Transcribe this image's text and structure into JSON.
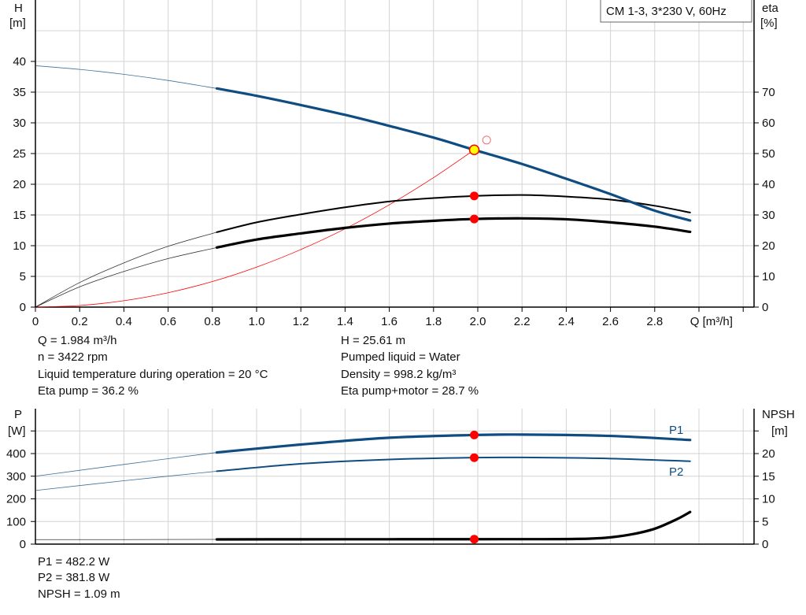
{
  "legend_box": "CM 1-3, 3*230 V, 60Hz",
  "colors": {
    "blue": "#0f4c81",
    "black": "#000000",
    "red": "#ff0000",
    "grid": "#d3d3d3",
    "yellow": "#ffff00"
  },
  "chart_data": [
    {
      "type": "line",
      "ylabel": "H",
      "yunit": "[m]",
      "y2label": "eta",
      "y2unit": "[%]",
      "xlabel": "Q [m³/h]",
      "xlim": [
        0,
        3.2
      ],
      "ylim": [
        0,
        40
      ],
      "y2lim": [
        0,
        80
      ],
      "grid": true,
      "xticks": [
        "0",
        "0.2",
        "0.4",
        "0.6",
        "0.8",
        "1.0",
        "1.2",
        "1.4",
        "1.6",
        "1.8",
        "2.0",
        "2.2",
        "2.4",
        "2.6",
        "2.8"
      ],
      "yticks": [
        "0",
        "5",
        "10",
        "15",
        "20",
        "25",
        "30",
        "35",
        "40"
      ],
      "y2ticks": [
        "0",
        "10",
        "20",
        "30",
        "40",
        "50",
        "60",
        "70"
      ],
      "series": [
        {
          "id": "H",
          "axis": "left",
          "color": "#0f4c81",
          "x": [
            0,
            0.2,
            0.4,
            0.6,
            0.82,
            1.0,
            1.2,
            1.4,
            1.6,
            1.8,
            1.984,
            2.2,
            2.4,
            2.6,
            2.8,
            2.96
          ],
          "y": [
            39.3,
            38.7,
            37.9,
            36.9,
            35.6,
            34.4,
            32.9,
            31.3,
            29.5,
            27.6,
            25.6,
            23.3,
            20.9,
            18.4,
            15.7,
            14.1
          ]
        },
        {
          "id": "eta_pump",
          "axis": "right",
          "color": "#000000",
          "x": [
            0,
            0.2,
            0.4,
            0.6,
            0.82,
            1.0,
            1.2,
            1.4,
            1.6,
            1.8,
            1.984,
            2.2,
            2.4,
            2.6,
            2.8,
            2.96
          ],
          "y": [
            0,
            8,
            14.4,
            19.8,
            24.4,
            27.6,
            30.2,
            32.5,
            34.4,
            35.5,
            36.2,
            36.5,
            36.0,
            35.0,
            33.0,
            30.8
          ]
        },
        {
          "id": "eta_pump_motor",
          "axis": "right",
          "color": "#000000",
          "x": [
            0,
            0.2,
            0.4,
            0.6,
            0.82,
            1.0,
            1.2,
            1.4,
            1.6,
            1.8,
            1.984,
            2.2,
            2.4,
            2.6,
            2.8,
            2.96
          ],
          "y": [
            0,
            6.6,
            11.6,
            15.8,
            19.4,
            22,
            24,
            25.8,
            27.2,
            28.1,
            28.7,
            28.9,
            28.6,
            27.6,
            26.2,
            24.5
          ]
        },
        {
          "id": "system",
          "axis": "left",
          "color": "#ff0000",
          "x": [
            0,
            0.2,
            0.4,
            0.6,
            0.8,
            1.0,
            1.2,
            1.4,
            1.6,
            1.8,
            1.984
          ],
          "y": [
            0,
            0.26,
            1.04,
            2.34,
            4.16,
            6.51,
            9.37,
            12.75,
            16.66,
            21.08,
            25.61
          ]
        }
      ],
      "duty_point": {
        "Q": 1.984,
        "H": 25.61,
        "eta_pump": 36.2,
        "eta_pump_motor": 28.7
      },
      "open_marker": {
        "Q": 2.04,
        "H": 27.2
      }
    },
    {
      "type": "line",
      "ylabel": "P",
      "yunit": "[W]",
      "y2label": "NPSH",
      "y2unit": "[m]",
      "xlim": [
        0,
        3.2
      ],
      "ylim": [
        0,
        500
      ],
      "y2lim": [
        0,
        25
      ],
      "grid": true,
      "yticks": [
        "0",
        "100",
        "200",
        "300",
        "400"
      ],
      "y2ticks": [
        "0",
        "5",
        "10",
        "15",
        "20"
      ],
      "series": [
        {
          "id": "P1",
          "name": "P1",
          "axis": "left",
          "color": "#0f4c81",
          "x": [
            0,
            0.4,
            0.82,
            1.2,
            1.6,
            1.984,
            2.2,
            2.6,
            2.96
          ],
          "y": [
            300,
            352,
            405,
            440,
            470,
            482,
            484,
            478,
            460
          ]
        },
        {
          "id": "P2",
          "name": "P2",
          "axis": "left",
          "color": "#0f4c81",
          "x": [
            0,
            0.4,
            0.82,
            1.2,
            1.6,
            1.984,
            2.2,
            2.6,
            2.96
          ],
          "y": [
            237,
            280,
            322,
            355,
            374,
            382,
            383,
            378,
            366
          ]
        },
        {
          "id": "NPSH",
          "axis": "right",
          "color": "#000000",
          "x": [
            0,
            0.4,
            0.82,
            1.2,
            1.6,
            1.984,
            2.3,
            2.5,
            2.6,
            2.7,
            2.8,
            2.9,
            2.96
          ],
          "y": [
            1.0,
            1.0,
            1.05,
            1.07,
            1.08,
            1.09,
            1.1,
            1.2,
            1.5,
            2.2,
            3.4,
            5.5,
            7.1
          ]
        }
      ],
      "duty_point": {
        "Q": 1.984,
        "P1": 482.2,
        "P2": 381.8,
        "NPSH": 1.09
      }
    }
  ],
  "info_top": {
    "left": [
      "Q = 1.984 m³/h",
      "n = 3422 rpm",
      "Liquid temperature during operation = 20 °C",
      "Eta pump = 36.2 %"
    ],
    "right": [
      "H = 25.61 m",
      "Pumped liquid = Water",
      "Density = 998.2 kg/m³",
      "Eta pump+motor = 28.7 %"
    ]
  },
  "info_bottom": [
    "P1 = 482.2 W",
    "P2 = 381.8 W",
    "NPSH = 1.09 m"
  ]
}
